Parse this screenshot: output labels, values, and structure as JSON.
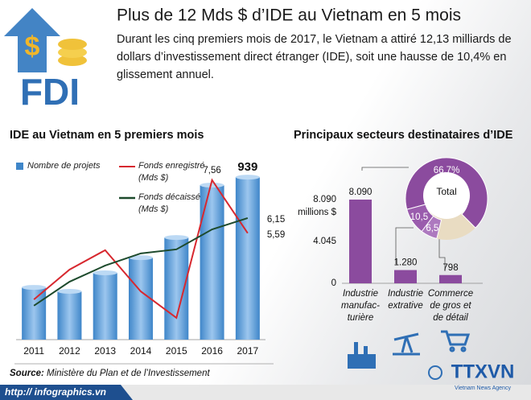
{
  "header": {
    "logo_text": "FDI",
    "logo_symbol": "$",
    "title": "Plus de 12 Mds $ d’IDE au Vietnam en 5 mois",
    "subtitle": "Durant les cinq premiers mois de 2017, le Vietnam a attiré 12,13 milliards de dollars d’investissement direct étranger (IDE), soit une hausse de 10,4% en glissement annuel."
  },
  "chart_data": [
    {
      "type": "combo",
      "title": "IDE au Vietnam en 5 premiers mois",
      "categories": [
        "2011",
        "2012",
        "2013",
        "2014",
        "2015",
        "2016",
        "2017"
      ],
      "series": [
        {
          "name": "Nombre de projets",
          "type": "bar",
          "color": "#3f86c9",
          "values": [
            302,
            279,
            386,
            474,
            590,
            893,
            939
          ],
          "value_labels": [
            null,
            null,
            null,
            null,
            null,
            null,
            "939"
          ]
        },
        {
          "name": "Fonds enregistré (Mds $)",
          "type": "line",
          "color": "#d7282f",
          "values": [
            3.13,
            4.24,
            4.96,
            3.43,
            2.45,
            7.56,
            5.59
          ],
          "value_labels": [
            null,
            null,
            null,
            null,
            null,
            "7,56",
            "5,59"
          ]
        },
        {
          "name": "Fonds décaissé (Mds $)",
          "type": "line",
          "color": "#1d4a2c",
          "values": [
            2.9,
            3.79,
            4.39,
            4.84,
            4.99,
            5.73,
            6.15
          ],
          "value_labels": [
            null,
            null,
            null,
            null,
            null,
            null,
            "6,15"
          ]
        }
      ]
    },
    {
      "type": "bar",
      "title": "Principaux secteurs destinataires d’IDE",
      "categories": [
        "Industrie\nmanufac-\nturière",
        "Industrie\nextrative",
        "Commerce\nde gros et\nde détail"
      ],
      "values": [
        8090,
        1280,
        798
      ],
      "value_labels": [
        "8.090",
        "1.280",
        "798"
      ],
      "color": "#8b4b9e",
      "ylabel": "millions $",
      "ylim": [
        0,
        8090
      ],
      "yticks": [
        0,
        {
          "value": 4045,
          "label": "4.045"
        },
        {
          "value": 8090,
          "label": "8.090"
        }
      ]
    },
    {
      "type": "pie",
      "hole": true,
      "center_label": "Total",
      "values": [
        66.7,
        10.5,
        6.5
      ],
      "value_labels": [
        "66,7%",
        "10,5",
        "6,5"
      ],
      "colors": [
        "#8b4b9e",
        "#9a5cad",
        "#ad79bf"
      ],
      "rest_color": "#e9dcc2"
    }
  ],
  "source": {
    "label": "Source:",
    "text": "Ministère du Plan et de l’Investissement"
  },
  "footer": {
    "url": "http:// infographics.vn",
    "agency": "TTXVN",
    "agency_name": "Vietnam News Agency"
  }
}
